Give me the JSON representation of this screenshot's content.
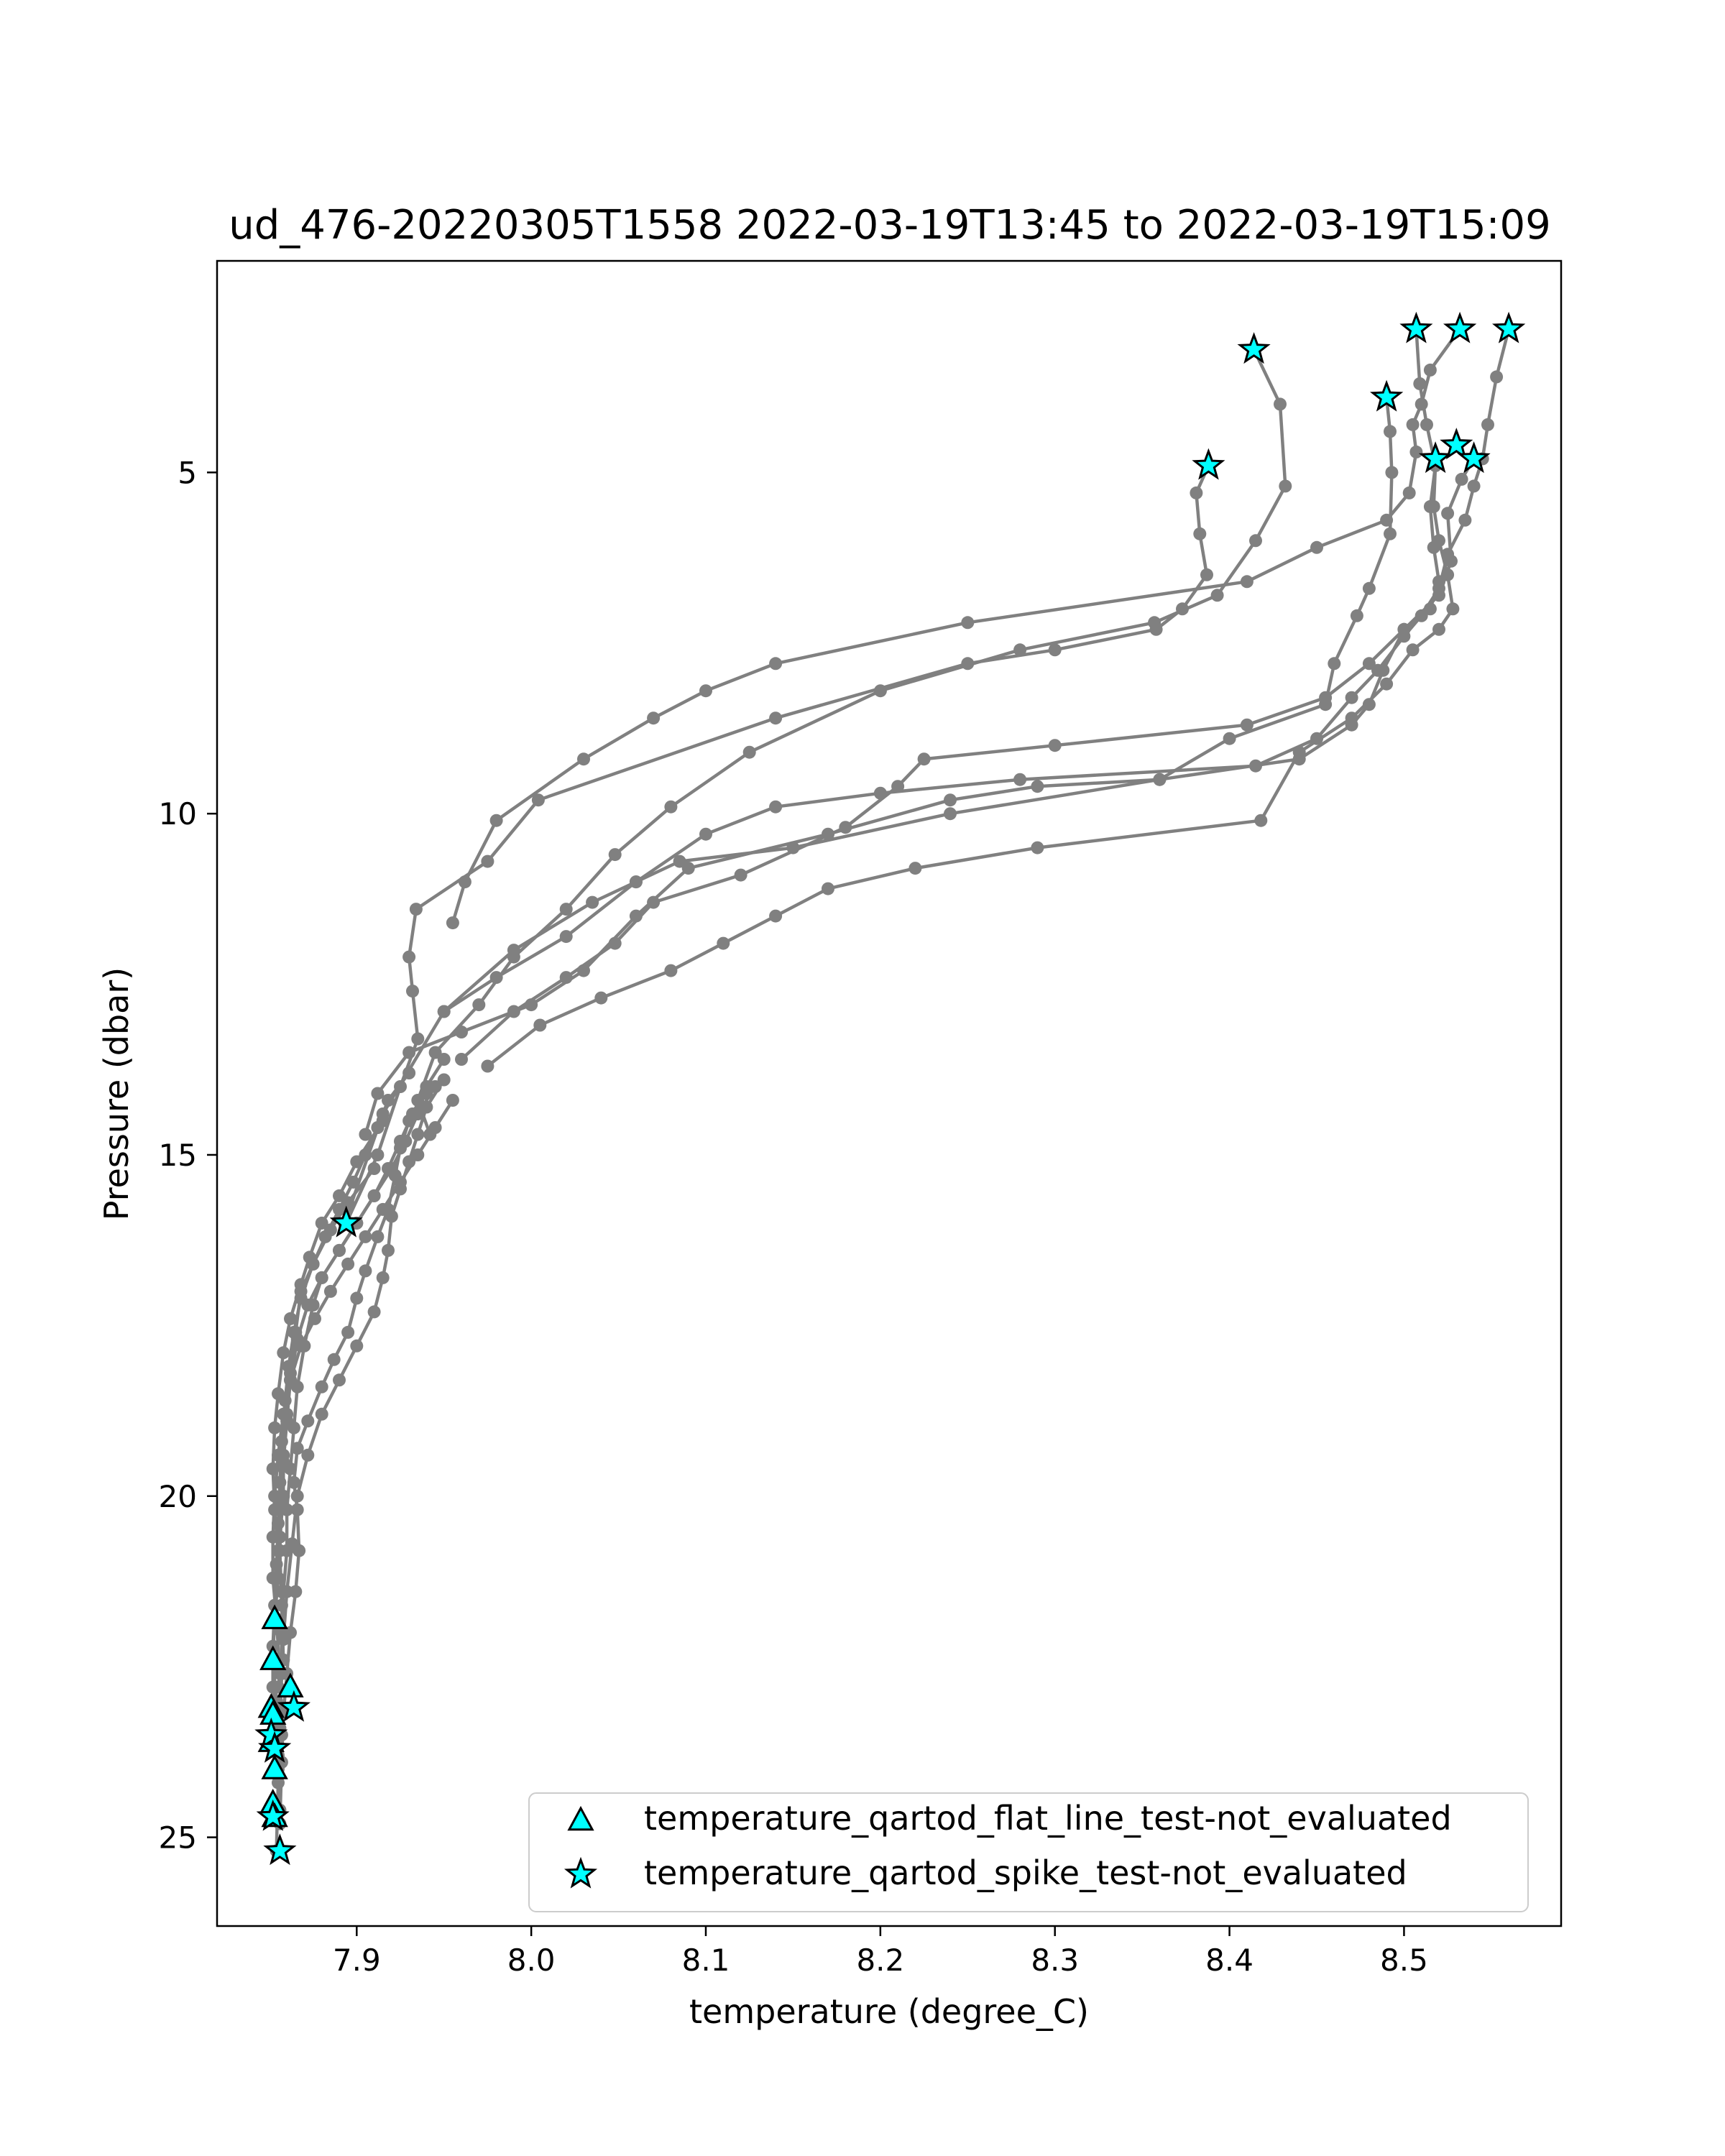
{
  "chart_data": {
    "type": "scatter",
    "title": "ud_476-20220305T1558 2022-03-19T13:45 to 2022-03-19T15:09",
    "xlabel": "temperature (degree_C)",
    "ylabel": "Pressure (dbar)",
    "xlim": [
      7.82,
      8.59
    ],
    "ylim": [
      26.3,
      1.9
    ],
    "y_inverted": true,
    "grid": false,
    "legend_position": "lower-right",
    "xticks": [
      7.9,
      8.0,
      8.1,
      8.2,
      8.3,
      8.4,
      8.5
    ],
    "xtick_labels": [
      "7.9",
      "8.0",
      "8.1",
      "8.2",
      "8.3",
      "8.4",
      "8.5"
    ],
    "yticks": [
      5,
      10,
      15,
      20,
      25
    ],
    "ytick_labels": [
      "5",
      "10",
      "15",
      "20",
      "25"
    ],
    "line_color": "#808080",
    "marker_fill": "#00ffff",
    "marker_edge": "#000000",
    "profiles": [
      {
        "x": [
          8.388,
          8.381,
          8.383,
          8.387,
          8.373,
          8.358,
          8.3,
          8.25,
          8.14,
          8.004,
          7.975,
          7.934,
          7.93,
          7.932,
          7.935,
          7.925,
          7.912,
          7.894
        ],
        "y": [
          4.9,
          5.3,
          5.9,
          6.5,
          7.0,
          7.3,
          7.6,
          7.8,
          8.6,
          9.8,
          10.7,
          11.4,
          12.1,
          12.6,
          13.3,
          14.0,
          15.0,
          16.0
        ]
      },
      {
        "x": [
          8.414,
          8.429,
          8.432,
          8.415,
          8.393,
          8.357,
          8.28,
          8.2,
          8.125,
          8.08,
          8.048,
          8.02,
          7.99,
          7.97,
          7.945,
          7.935,
          7.942
        ],
        "y": [
          3.2,
          4.0,
          5.2,
          6.0,
          6.8,
          7.2,
          7.6,
          8.2,
          9.1,
          9.9,
          10.6,
          11.4,
          12.1,
          12.8,
          13.5,
          14.2,
          14.7
        ]
      },
      {
        "x": [
          8.49,
          8.492,
          8.493,
          8.492,
          8.48,
          8.473,
          8.46,
          8.455,
          8.4,
          8.36,
          8.24,
          8.15,
          8.085,
          8.06,
          8.035,
          7.99,
          7.95,
          7.915,
          7.893
        ],
        "y": [
          3.9,
          4.4,
          5.0,
          5.9,
          6.7,
          7.1,
          7.8,
          8.4,
          8.9,
          9.5,
          10.0,
          10.5,
          10.7,
          11.0,
          11.3,
          12.0,
          12.9,
          14.4,
          16.0
        ]
      },
      {
        "x": [
          8.507,
          8.509,
          8.513,
          8.518,
          8.515,
          8.517,
          8.52,
          8.515,
          8.5,
          8.488,
          8.48,
          8.47,
          8.44,
          8.36,
          8.29,
          8.24,
          8.17,
          8.09,
          8.06,
          8.03,
          8.0,
          7.96,
          7.93,
          7.912,
          7.905
        ],
        "y": [
          2.9,
          3.7,
          4.3,
          4.9,
          5.5,
          6.1,
          6.6,
          7.0,
          7.3,
          7.9,
          8.4,
          8.7,
          9.2,
          9.5,
          9.6,
          9.8,
          10.3,
          10.8,
          11.5,
          12.3,
          12.8,
          13.2,
          13.5,
          14.1,
          14.7
        ]
      },
      {
        "x": [
          8.532,
          8.515,
          8.51,
          8.505,
          8.507,
          8.503,
          8.49,
          8.45,
          8.41,
          8.25,
          8.14,
          8.1,
          8.07,
          8.03,
          7.98,
          7.962,
          7.955
        ],
        "y": [
          2.9,
          3.5,
          4.0,
          4.3,
          4.7,
          5.3,
          5.7,
          6.1,
          6.6,
          7.2,
          7.8,
          8.2,
          8.6,
          9.2,
          10.1,
          11.0,
          11.6
        ]
      },
      {
        "x": [
          8.56,
          8.553,
          8.548,
          8.545,
          8.54,
          8.535,
          8.525,
          8.52,
          8.51,
          8.5,
          8.485,
          8.47,
          8.45,
          8.415,
          8.28,
          8.2,
          8.14,
          8.1,
          8.06,
          8.02,
          7.98,
          7.95
        ],
        "y": [
          2.9,
          3.6,
          4.3,
          4.8,
          5.2,
          5.7,
          6.2,
          6.7,
          7.1,
          7.4,
          7.9,
          8.3,
          8.9,
          9.3,
          9.5,
          9.7,
          9.9,
          10.3,
          11.0,
          11.8,
          12.4,
          12.9
        ]
      },
      {
        "x": [
          8.54,
          8.533,
          8.525,
          8.527,
          8.52,
          8.5,
          8.48,
          8.455,
          8.41,
          8.3,
          8.225,
          8.21,
          8.18,
          8.12,
          8.07,
          8.048,
          8.02,
          7.99,
          7.96
        ],
        "y": [
          4.8,
          5.1,
          5.6,
          6.3,
          6.8,
          7.3,
          7.8,
          8.3,
          8.7,
          9.0,
          9.2,
          9.6,
          10.2,
          10.9,
          11.3,
          11.9,
          12.4,
          12.9,
          13.6
        ]
      },
      {
        "x": [
          8.518,
          8.517,
          8.52,
          8.525,
          8.528,
          8.52,
          8.505,
          8.49,
          8.47,
          8.44,
          8.418,
          8.29,
          8.22,
          8.17,
          8.14,
          8.11,
          8.08,
          8.04,
          8.005,
          7.975
        ],
        "y": [
          4.9,
          5.5,
          6.0,
          6.5,
          7.0,
          7.3,
          7.6,
          8.1,
          8.6,
          9.1,
          10.1,
          10.5,
          10.8,
          11.1,
          11.5,
          11.9,
          12.3,
          12.7,
          13.1,
          13.7
        ]
      }
    ],
    "deep_profiles": [
      {
        "x": [
          7.93,
          7.918,
          7.912,
          7.905,
          7.898,
          7.89,
          7.882,
          7.875,
          7.868,
          7.865,
          7.862,
          7.86,
          7.858,
          7.858,
          7.856,
          7.855,
          7.853,
          7.852,
          7.854,
          7.855,
          7.856
        ],
        "y": [
          13.8,
          14.2,
          14.6,
          15.0,
          15.4,
          15.8,
          16.2,
          16.6,
          17.0,
          17.6,
          18.2,
          18.8,
          19.4,
          20.0,
          20.6,
          21.2,
          21.8,
          22.4,
          23.0,
          23.8,
          24.6
        ]
      },
      {
        "x": [
          7.945,
          7.935,
          7.928,
          7.92,
          7.91,
          7.9,
          7.89,
          7.88,
          7.875,
          7.87,
          7.866,
          7.864,
          7.862,
          7.86,
          7.86,
          7.858,
          7.857,
          7.857,
          7.856,
          7.855
        ],
        "y": [
          14.0,
          14.4,
          14.8,
          15.2,
          15.6,
          16.0,
          16.4,
          16.8,
          17.2,
          17.8,
          18.4,
          19.0,
          19.6,
          20.2,
          20.8,
          21.4,
          22.0,
          22.6,
          23.2,
          24.0
        ]
      },
      {
        "x": [
          7.95,
          7.94,
          7.935,
          7.93,
          7.925,
          7.92,
          7.918,
          7.915,
          7.91,
          7.9,
          7.89,
          7.88,
          7.872,
          7.866,
          7.863,
          7.86,
          7.858,
          7.855
        ],
        "y": [
          13.9,
          14.3,
          14.7,
          15.1,
          15.5,
          15.9,
          16.4,
          16.8,
          17.3,
          17.8,
          18.3,
          18.8,
          19.4,
          20.0,
          20.7,
          21.4,
          22.1,
          22.8
        ]
      },
      {
        "x": [
          7.94,
          7.93,
          7.925,
          7.922,
          7.918,
          7.912,
          7.905,
          7.9,
          7.895,
          7.887,
          7.88,
          7.872,
          7.866,
          7.864,
          7.866,
          7.867,
          7.865,
          7.862,
          7.86,
          7.858,
          7.857,
          7.856
        ],
        "y": [
          14.1,
          14.5,
          14.9,
          15.3,
          15.8,
          16.2,
          16.7,
          17.1,
          17.6,
          18.0,
          18.4,
          18.9,
          19.3,
          19.8,
          20.2,
          20.8,
          21.4,
          22.0,
          22.6,
          23.2,
          23.9,
          24.8
        ]
      },
      {
        "x": [
          7.915,
          7.9,
          7.89,
          7.88,
          7.873,
          7.868,
          7.862,
          7.858,
          7.855,
          7.853,
          7.852,
          7.853,
          7.855,
          7.857,
          7.858,
          7.857,
          7.856,
          7.855,
          7.854
        ],
        "y": [
          14.5,
          15.1,
          15.6,
          16.0,
          16.5,
          16.9,
          17.4,
          17.9,
          18.5,
          19.0,
          19.6,
          20.2,
          20.8,
          21.4,
          22.0,
          22.6,
          23.4,
          24.2,
          25.2
        ]
      },
      {
        "x": [
          7.91,
          7.895,
          7.885,
          7.875,
          7.868,
          7.864,
          7.861,
          7.859,
          7.857,
          7.856,
          7.855,
          7.854,
          7.853,
          7.852,
          7.852,
          7.853,
          7.854
        ],
        "y": [
          15.2,
          15.7,
          16.1,
          16.6,
          17.1,
          17.6,
          18.1,
          18.6,
          19.2,
          19.8,
          20.4,
          21.0,
          21.6,
          22.2,
          22.8,
          23.4,
          24.0
        ]
      },
      {
        "x": [
          7.95,
          7.94,
          7.932,
          7.925,
          7.918,
          7.91,
          7.9,
          7.89,
          7.88,
          7.872,
          7.866,
          7.862,
          7.86,
          7.858,
          7.857,
          7.856,
          7.857,
          7.858
        ],
        "y": [
          13.6,
          14.0,
          14.4,
          14.8,
          15.2,
          15.6,
          16.0,
          16.4,
          16.8,
          17.2,
          17.7,
          18.3,
          18.9,
          19.5,
          20.1,
          20.8,
          21.6,
          22.4
        ]
      },
      {
        "x": [
          7.955,
          7.945,
          7.935,
          7.925,
          7.915,
          7.905,
          7.895,
          7.885,
          7.876,
          7.868,
          7.862,
          7.858,
          7.855,
          7.853,
          7.852,
          7.852,
          7.854,
          7.856,
          7.857
        ],
        "y": [
          14.2,
          14.6,
          15.0,
          15.4,
          15.8,
          16.2,
          16.6,
          17.0,
          17.4,
          17.8,
          18.3,
          18.8,
          19.4,
          20.0,
          20.6,
          21.2,
          21.8,
          22.6,
          23.5
        ]
      }
    ],
    "flags": {
      "flat_line": {
        "legend": "temperature_qartod_flat_line_test-not_evaluated",
        "marker": "triangle",
        "x": [
          7.853,
          7.852,
          7.862,
          7.851,
          7.852,
          7.851,
          7.853,
          7.852,
          7.853
        ],
        "y": [
          21.8,
          22.4,
          22.8,
          23.1,
          23.2,
          23.6,
          24.0,
          24.5,
          24.7
        ]
      },
      "spike": {
        "legend": "temperature_qartod_spike_test-not_evaluated",
        "marker": "star",
        "x": [
          8.414,
          8.388,
          8.507,
          8.532,
          8.56,
          8.49,
          8.518,
          8.53,
          8.54,
          7.894,
          7.864,
          7.851,
          7.853,
          7.852,
          7.856
        ],
        "y": [
          3.2,
          4.9,
          2.9,
          2.9,
          2.9,
          3.9,
          4.8,
          4.6,
          4.8,
          16.0,
          23.1,
          23.5,
          23.7,
          24.7,
          25.2
        ]
      }
    }
  }
}
